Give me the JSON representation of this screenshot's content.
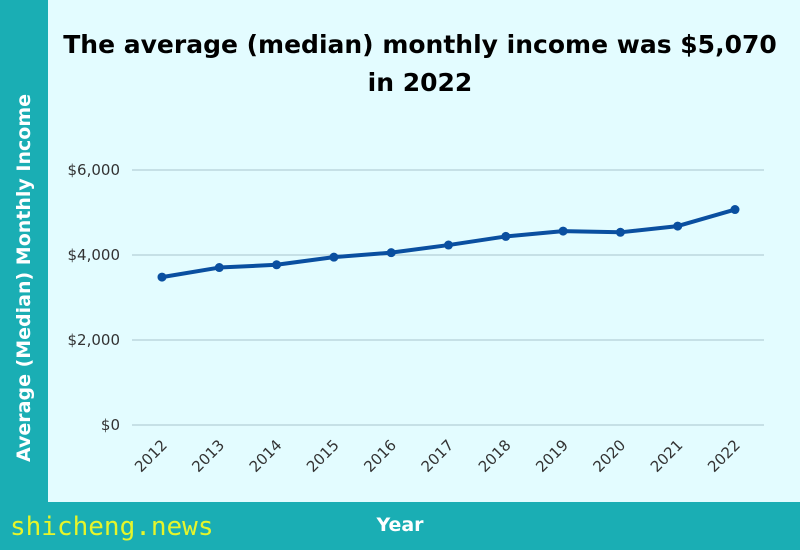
{
  "chart_data": {
    "type": "line",
    "title": "The average (median) monthly income was $5,070 in 2022",
    "xlabel": "Year",
    "ylabel": "Average (Median) Monthly Income",
    "categories": [
      "2012",
      "2013",
      "2014",
      "2015",
      "2016",
      "2017",
      "2018",
      "2019",
      "2020",
      "2021",
      "2022"
    ],
    "values": [
      3480,
      3705,
      3770,
      3949,
      4055,
      4234,
      4437,
      4563,
      4534,
      4680,
      5070
    ],
    "ylim": [
      0,
      6000
    ],
    "yticks": [
      0,
      2000,
      4000,
      6000
    ],
    "ytick_labels": [
      "$0",
      "$2,000",
      "$4,000",
      "$6,000"
    ],
    "grid": true,
    "line_color": "#0a4fa0"
  },
  "watermark": "shicheng.news",
  "colors": {
    "background": "#e3fcff",
    "band": "#1aaeb4",
    "grid": "#a9c4cc",
    "watermark": "#e6f52a"
  }
}
